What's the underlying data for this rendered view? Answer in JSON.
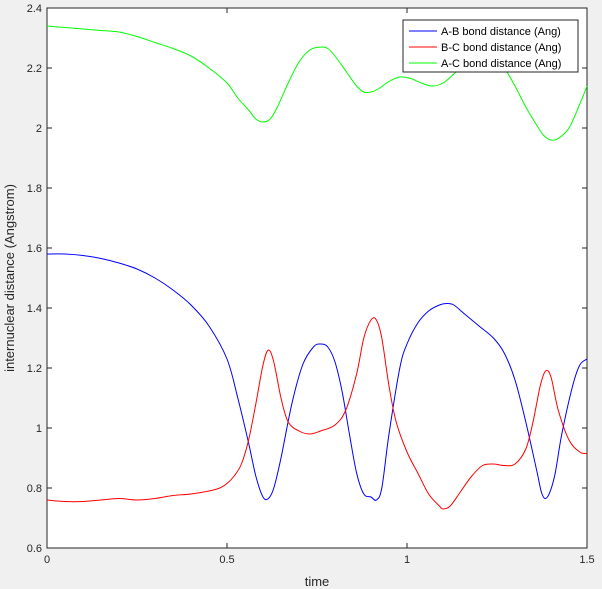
{
  "chart_data": {
    "type": "line",
    "xlabel": "time",
    "ylabel": "internuclear distance (Angstrom)",
    "xlim": [
      0,
      1.5
    ],
    "ylim": [
      0.6,
      2.4
    ],
    "xticks": [
      0,
      0.5,
      1,
      1.5
    ],
    "xtick_labels": [
      "0",
      "0.5",
      "1",
      "1.5"
    ],
    "yticks": [
      0.6,
      0.8,
      1.0,
      1.2,
      1.4,
      1.6,
      1.8,
      2.0,
      2.2,
      2.4
    ],
    "ytick_labels": [
      "0.6",
      "0.8",
      "1",
      "1.2",
      "1.4",
      "1.6",
      "1.8",
      "2",
      "2.2",
      "2.4"
    ],
    "grid": false,
    "legend_position": "top-right",
    "series": [
      {
        "name": "A-B bond distance (Ang)",
        "color": "#0000ff",
        "x": [
          0,
          0.05,
          0.1,
          0.15,
          0.2,
          0.25,
          0.3,
          0.35,
          0.4,
          0.45,
          0.5,
          0.53,
          0.56,
          0.58,
          0.6,
          0.615,
          0.63,
          0.65,
          0.68,
          0.71,
          0.74,
          0.76,
          0.78,
          0.8,
          0.82,
          0.84,
          0.86,
          0.88,
          0.9,
          0.915,
          0.93,
          0.95,
          0.98,
          1.0,
          1.03,
          1.06,
          1.09,
          1.11,
          1.13,
          1.16,
          1.2,
          1.24,
          1.27,
          1.3,
          1.33,
          1.36,
          1.375,
          1.39,
          1.41,
          1.43,
          1.46,
          1.48,
          1.5
        ],
        "y": [
          1.58,
          1.58,
          1.575,
          1.565,
          1.55,
          1.53,
          1.5,
          1.46,
          1.41,
          1.34,
          1.23,
          1.1,
          0.95,
          0.84,
          0.77,
          0.765,
          0.8,
          0.9,
          1.08,
          1.21,
          1.27,
          1.28,
          1.27,
          1.22,
          1.12,
          0.98,
          0.85,
          0.78,
          0.77,
          0.76,
          0.8,
          0.98,
          1.2,
          1.28,
          1.35,
          1.39,
          1.41,
          1.415,
          1.41,
          1.38,
          1.34,
          1.3,
          1.25,
          1.16,
          1.02,
          0.86,
          0.78,
          0.77,
          0.84,
          0.98,
          1.14,
          1.21,
          1.23
        ]
      },
      {
        "name": "B-C bond distance (Ang)",
        "color": "#ff0000",
        "x": [
          0,
          0.05,
          0.1,
          0.15,
          0.2,
          0.25,
          0.3,
          0.35,
          0.4,
          0.45,
          0.48,
          0.5,
          0.52,
          0.54,
          0.56,
          0.58,
          0.6,
          0.615,
          0.63,
          0.65,
          0.67,
          0.7,
          0.73,
          0.76,
          0.8,
          0.83,
          0.86,
          0.88,
          0.9,
          0.915,
          0.93,
          0.95,
          0.97,
          1.0,
          1.03,
          1.06,
          1.09,
          1.1,
          1.12,
          1.15,
          1.18,
          1.21,
          1.24,
          1.27,
          1.3,
          1.33,
          1.35,
          1.37,
          1.385,
          1.4,
          1.42,
          1.45,
          1.48,
          1.5
        ],
        "y": [
          0.76,
          0.755,
          0.755,
          0.76,
          0.765,
          0.76,
          0.765,
          0.775,
          0.78,
          0.79,
          0.8,
          0.815,
          0.84,
          0.88,
          0.96,
          1.08,
          1.21,
          1.26,
          1.22,
          1.1,
          1.02,
          0.99,
          0.98,
          0.99,
          1.01,
          1.06,
          1.18,
          1.3,
          1.36,
          1.36,
          1.3,
          1.14,
          1.02,
          0.92,
          0.85,
          0.78,
          0.74,
          0.73,
          0.74,
          0.79,
          0.84,
          0.875,
          0.88,
          0.875,
          0.88,
          0.93,
          1.02,
          1.14,
          1.19,
          1.17,
          1.06,
          0.96,
          0.92,
          0.915
        ]
      },
      {
        "name": "A-C bond distance (Ang)",
        "color": "#00ff00",
        "x": [
          0,
          0.05,
          0.1,
          0.15,
          0.2,
          0.25,
          0.3,
          0.35,
          0.4,
          0.45,
          0.5,
          0.53,
          0.56,
          0.58,
          0.6,
          0.62,
          0.64,
          0.67,
          0.7,
          0.73,
          0.76,
          0.78,
          0.8,
          0.83,
          0.86,
          0.88,
          0.9,
          0.92,
          0.95,
          0.98,
          1.01,
          1.04,
          1.07,
          1.1,
          1.13,
          1.16,
          1.19,
          1.21,
          1.24,
          1.27,
          1.3,
          1.33,
          1.36,
          1.38,
          1.4,
          1.42,
          1.45,
          1.48,
          1.5
        ],
        "y": [
          2.34,
          2.335,
          2.33,
          2.325,
          2.32,
          2.305,
          2.285,
          2.265,
          2.24,
          2.2,
          2.15,
          2.1,
          2.06,
          2.03,
          2.02,
          2.03,
          2.07,
          2.15,
          2.22,
          2.26,
          2.27,
          2.265,
          2.24,
          2.19,
          2.14,
          2.12,
          2.12,
          2.13,
          2.155,
          2.17,
          2.165,
          2.15,
          2.14,
          2.15,
          2.18,
          2.215,
          2.24,
          2.24,
          2.23,
          2.2,
          2.14,
          2.07,
          2.01,
          1.975,
          1.96,
          1.965,
          2.0,
          2.08,
          2.14
        ]
      }
    ]
  }
}
